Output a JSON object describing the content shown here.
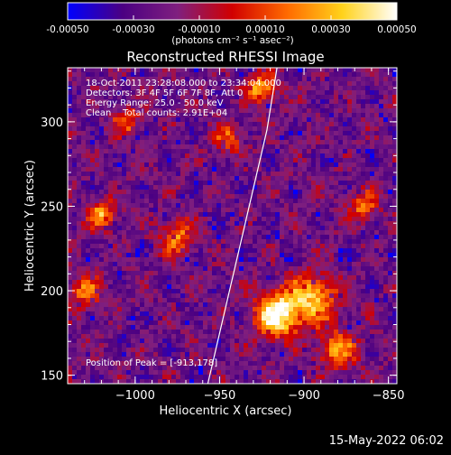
{
  "colorbar": {
    "ticks": [
      "-0.00050",
      "-0.00030",
      "-0.00010",
      "0.00010",
      "0.00030",
      "0.00050"
    ],
    "tick_values": [
      -0.0005,
      -0.0003,
      -0.0001,
      0.0001,
      0.0003,
      0.0005
    ],
    "range": [
      -0.0005,
      0.0005
    ],
    "units": "(photons cm⁻² s⁻¹ asec⁻²)",
    "colors": [
      "#0000ff",
      "#4b0082",
      "#7f1f7f",
      "#d10000",
      "#ff6a00",
      "#ffd21a",
      "#ffffff"
    ]
  },
  "annotation": {
    "line1": "18-Oct-2011 23:28:08.000 to 23:34:04.000",
    "line2": "Detectors: 3F 4F 5F 6F 7F 8F, Att 0",
    "line3": "Energy Range: 25.0 - 50.0 keV",
    "line4": "Clean    Total counts: 2.91E+04",
    "peak": "Position of Peak = [-913,178]"
  },
  "timestamp": "15-May-2022 06:02",
  "chart_data": {
    "type": "heatmap",
    "title": "Reconstructed RHESSI Image",
    "xlabel": "Heliocentric X (arcsec)",
    "ylabel": "Heliocentric Y (arcsec)",
    "xlim": [
      -1040,
      -845
    ],
    "ylim": [
      145,
      332
    ],
    "xticks": [
      -1000,
      -950,
      -900,
      -850
    ],
    "xtick_labels": [
      "−1000",
      "−950",
      "−900",
      "−850"
    ],
    "yticks": [
      150,
      200,
      250,
      300
    ],
    "ytick_labels": [
      "150",
      "200",
      "250",
      "300"
    ],
    "limb_curve": [
      [
        -957,
        145
      ],
      [
        -950,
        175
      ],
      [
        -943,
        205
      ],
      [
        -936,
        235
      ],
      [
        -929,
        265
      ],
      [
        -922,
        295
      ],
      [
        -916,
        332
      ]
    ],
    "peak": [
      -913,
      178
    ],
    "bright_sources": [
      {
        "x": -916,
        "y": 186,
        "intensity": 1.0,
        "spread": 9
      },
      {
        "x": -895,
        "y": 195,
        "intensity": 0.75,
        "spread": 10
      },
      {
        "x": -925,
        "y": 320,
        "intensity": 0.7,
        "spread": 6
      },
      {
        "x": -1020,
        "y": 245,
        "intensity": 0.65,
        "spread": 6
      },
      {
        "x": -975,
        "y": 232,
        "intensity": 0.55,
        "spread": 7
      },
      {
        "x": -865,
        "y": 250,
        "intensity": 0.5,
        "spread": 6
      },
      {
        "x": -880,
        "y": 165,
        "intensity": 0.6,
        "spread": 8
      },
      {
        "x": -1005,
        "y": 300,
        "intensity": 0.45,
        "spread": 6
      },
      {
        "x": -1030,
        "y": 200,
        "intensity": 0.5,
        "spread": 7
      },
      {
        "x": -945,
        "y": 290,
        "intensity": 0.45,
        "spread": 6
      }
    ]
  }
}
